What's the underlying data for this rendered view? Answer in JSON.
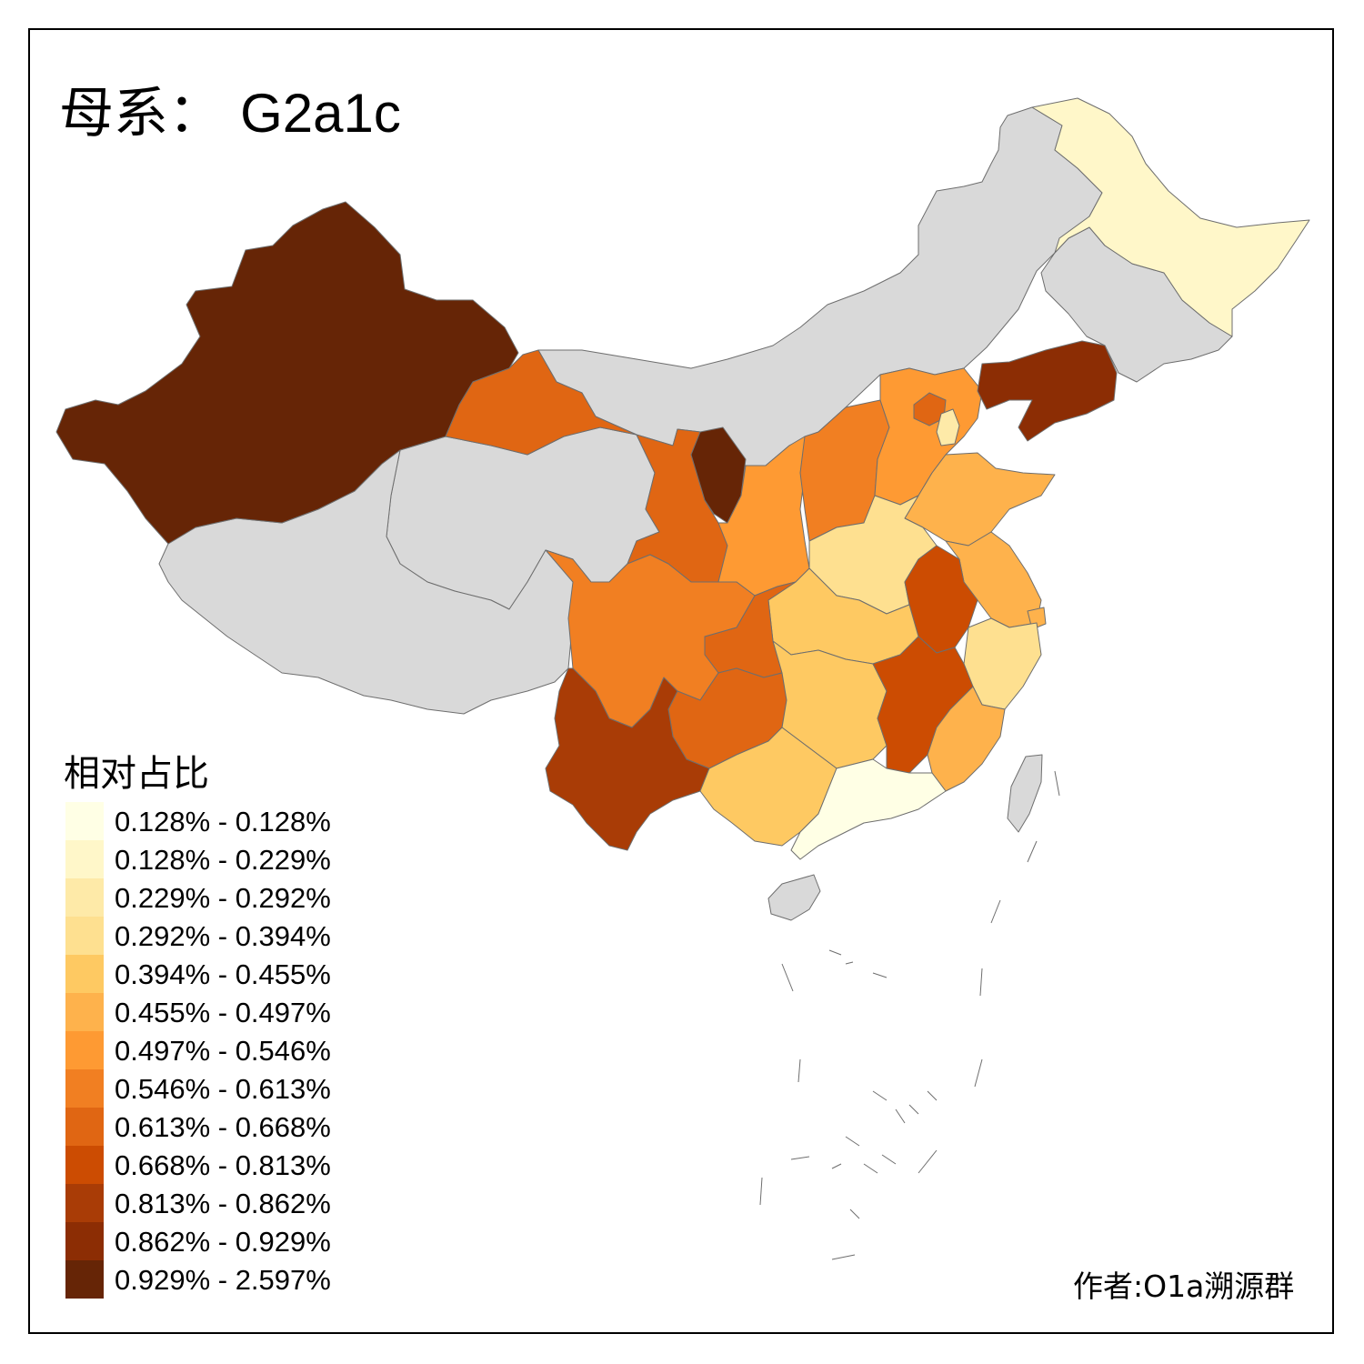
{
  "title": {
    "prefix": "母系：",
    "haplogroup": "G2a1c"
  },
  "legend": {
    "title": "相对占比",
    "bins": [
      {
        "label": "0.128% - 0.128%",
        "color": "#ffffe5"
      },
      {
        "label": "0.128% - 0.229%",
        "color": "#fff7c9"
      },
      {
        "label": "0.229% - 0.292%",
        "color": "#feeaa8"
      },
      {
        "label": "0.292% - 0.394%",
        "color": "#fee090"
      },
      {
        "label": "0.394% - 0.455%",
        "color": "#fec962"
      },
      {
        "label": "0.455% - 0.497%",
        "color": "#feb24c"
      },
      {
        "label": "0.497% - 0.546%",
        "color": "#fe9a33"
      },
      {
        "label": "0.546% - 0.613%",
        "color": "#f17f22"
      },
      {
        "label": "0.613% - 0.668%",
        "color": "#e06613"
      },
      {
        "label": "0.668% - 0.813%",
        "color": "#cc4c02"
      },
      {
        "label": "0.813% - 0.862%",
        "color": "#a93c06"
      },
      {
        "label": "0.862% - 0.929%",
        "color": "#8c2d04"
      },
      {
        "label": "0.929% - 2.597%",
        "color": "#662506"
      }
    ]
  },
  "no_data_color": "#d9d9d9",
  "credit": "作者:O1a溯源群",
  "regions": [
    {
      "id": "xinjiang",
      "bin": 12
    },
    {
      "id": "tibet",
      "bin": null
    },
    {
      "id": "qinghai",
      "bin": null
    },
    {
      "id": "gansu-west",
      "bin": 8
    },
    {
      "id": "gansu-east",
      "bin": 8
    },
    {
      "id": "inner-mongolia",
      "bin": null
    },
    {
      "id": "ningxia",
      "bin": 12
    },
    {
      "id": "heilongjiang",
      "bin": 1
    },
    {
      "id": "jilin",
      "bin": null
    },
    {
      "id": "liaoning",
      "bin": 11
    },
    {
      "id": "hebei",
      "bin": 6
    },
    {
      "id": "beijing",
      "bin": 8
    },
    {
      "id": "tianjin",
      "bin": 2
    },
    {
      "id": "shanxi",
      "bin": 7
    },
    {
      "id": "shaanxi",
      "bin": 6
    },
    {
      "id": "shandong",
      "bin": 5
    },
    {
      "id": "henan",
      "bin": 3
    },
    {
      "id": "jiangsu",
      "bin": 5
    },
    {
      "id": "shanghai",
      "bin": 5
    },
    {
      "id": "anhui",
      "bin": 9
    },
    {
      "id": "zhejiang",
      "bin": 3
    },
    {
      "id": "hubei",
      "bin": 4
    },
    {
      "id": "chongqing",
      "bin": 8
    },
    {
      "id": "sichuan",
      "bin": 7
    },
    {
      "id": "guizhou",
      "bin": 8
    },
    {
      "id": "hunan",
      "bin": 4
    },
    {
      "id": "jiangxi",
      "bin": 9
    },
    {
      "id": "fujian",
      "bin": 5
    },
    {
      "id": "yunnan",
      "bin": 10
    },
    {
      "id": "guangxi",
      "bin": 4
    },
    {
      "id": "guangdong",
      "bin": 0
    },
    {
      "id": "hainan",
      "bin": null
    },
    {
      "id": "taiwan",
      "bin": null
    }
  ]
}
